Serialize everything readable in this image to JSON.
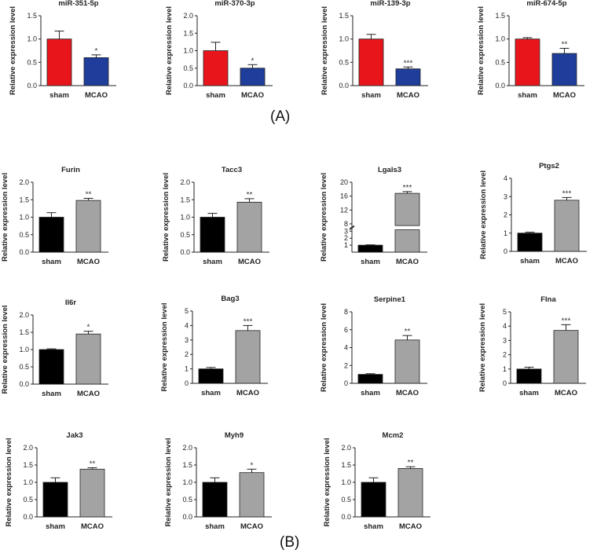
{
  "panel_labels": {
    "a": "(A)",
    "b": "(B)"
  },
  "common": {
    "ylabel": "Relative expression level",
    "categories": [
      "sham",
      "MCAO"
    ]
  },
  "chart_data": [
    {
      "type": "bar",
      "title": "miR-351-5p",
      "categories": [
        "sham",
        "MCAO"
      ],
      "values": [
        1.0,
        0.6
      ],
      "errors": [
        0.17,
        0.06
      ],
      "significance": [
        "",
        "*"
      ],
      "ylabel": "Relative expression level",
      "ylim": [
        0,
        1.5
      ],
      "yticks": [
        0,
        0.5,
        1.0,
        1.5
      ],
      "colors": [
        "#e8161b",
        "#1f3d9a"
      ]
    },
    {
      "type": "bar",
      "title": "miR-370-3p",
      "categories": [
        "sham",
        "MCAO"
      ],
      "values": [
        1.0,
        0.5
      ],
      "errors": [
        0.24,
        0.1
      ],
      "significance": [
        "",
        "*"
      ],
      "ylabel": "Relative expression level",
      "ylim": [
        0,
        2.0
      ],
      "yticks": [
        0,
        0.5,
        1.0,
        1.5,
        2.0
      ],
      "colors": [
        "#e8161b",
        "#1f3d9a"
      ]
    },
    {
      "type": "bar",
      "title": "miR-139-3p",
      "categories": [
        "sham",
        "MCAO"
      ],
      "values": [
        1.0,
        0.36
      ],
      "errors": [
        0.1,
        0.04
      ],
      "significance": [
        "",
        "***"
      ],
      "ylabel": "Relative expression level",
      "ylim": [
        0,
        1.5
      ],
      "yticks": [
        0,
        0.5,
        1.0,
        1.5
      ],
      "colors": [
        "#e8161b",
        "#1f3d9a"
      ]
    },
    {
      "type": "bar",
      "title": "miR-674-5p",
      "categories": [
        "sham",
        "MCAO"
      ],
      "values": [
        1.0,
        0.69
      ],
      "errors": [
        0.03,
        0.11
      ],
      "significance": [
        "",
        "**"
      ],
      "ylabel": "Relative expression level",
      "ylim": [
        0,
        1.5
      ],
      "yticks": [
        0,
        0.5,
        1.0,
        1.5
      ],
      "colors": [
        "#e8161b",
        "#1f3d9a"
      ]
    },
    {
      "type": "bar",
      "title": "Furin",
      "categories": [
        "sham",
        "MCAO"
      ],
      "values": [
        1.0,
        1.48
      ],
      "errors": [
        0.13,
        0.06
      ],
      "significance": [
        "",
        "**"
      ],
      "ylabel": "Relative expression level",
      "ylim": [
        0,
        2.0
      ],
      "yticks": [
        0,
        0.5,
        1.0,
        1.5,
        2.0
      ],
      "colors": [
        "#000000",
        "#a3a3a3"
      ]
    },
    {
      "type": "bar",
      "title": "Tacc3",
      "categories": [
        "sham",
        "MCAO"
      ],
      "values": [
        1.0,
        1.43
      ],
      "errors": [
        0.11,
        0.1
      ],
      "significance": [
        "",
        "**"
      ],
      "ylabel": "Relative expression level",
      "ylim": [
        0,
        2.0
      ],
      "yticks": [
        0,
        0.5,
        1.0,
        1.5,
        2.0
      ],
      "colors": [
        "#000000",
        "#a3a3a3"
      ]
    },
    {
      "type": "bar",
      "title": "Lgals3",
      "categories": [
        "sham",
        "MCAO"
      ],
      "values": [
        1.0,
        16.8
      ],
      "errors": [
        0.05,
        0.5
      ],
      "significance": [
        "",
        "***"
      ],
      "ylabel": "Relative expression level",
      "ylim": [
        0,
        20
      ],
      "yticks": [
        1,
        2,
        3,
        8,
        12,
        16,
        20
      ],
      "axis_break": [
        3.2,
        7.5
      ],
      "colors": [
        "#000000",
        "#a3a3a3"
      ]
    },
    {
      "type": "bar",
      "title": "Ptgs2",
      "categories": [
        "sham",
        "MCAO"
      ],
      "values": [
        1.0,
        2.8
      ],
      "errors": [
        0.05,
        0.15
      ],
      "significance": [
        "",
        "***"
      ],
      "ylabel": "Relative expression level",
      "ylim": [
        0,
        4
      ],
      "yticks": [
        0,
        1,
        2,
        3,
        4
      ],
      "colors": [
        "#000000",
        "#a3a3a3"
      ]
    },
    {
      "type": "bar",
      "title": "Il6r",
      "categories": [
        "sham",
        "MCAO"
      ],
      "values": [
        1.0,
        1.45
      ],
      "errors": [
        0.02,
        0.08
      ],
      "significance": [
        "",
        "*"
      ],
      "ylabel": "Relative expression level",
      "ylim": [
        0,
        2.0
      ],
      "yticks": [
        0,
        0.5,
        1.0,
        1.5,
        2.0
      ],
      "colors": [
        "#000000",
        "#a3a3a3"
      ]
    },
    {
      "type": "bar",
      "title": "Bag3",
      "categories": [
        "sham",
        "MCAO"
      ],
      "values": [
        1.0,
        3.65
      ],
      "errors": [
        0.1,
        0.35
      ],
      "significance": [
        "",
        "***"
      ],
      "ylabel": "Relative expression level",
      "ylim": [
        0,
        5
      ],
      "yticks": [
        0,
        1,
        2,
        3,
        4,
        5
      ],
      "colors": [
        "#000000",
        "#a3a3a3"
      ]
    },
    {
      "type": "bar",
      "title": "Serpine1",
      "categories": [
        "sham",
        "MCAO"
      ],
      "values": [
        1.0,
        4.85
      ],
      "errors": [
        0.08,
        0.5
      ],
      "significance": [
        "",
        "**"
      ],
      "ylabel": "Relative expression level",
      "ylim": [
        0,
        8
      ],
      "yticks": [
        0,
        2,
        4,
        6,
        8
      ],
      "colors": [
        "#000000",
        "#a3a3a3"
      ]
    },
    {
      "type": "bar",
      "title": "Flna",
      "categories": [
        "sham",
        "MCAO"
      ],
      "values": [
        1.0,
        3.7
      ],
      "errors": [
        0.13,
        0.4
      ],
      "significance": [
        "",
        "***"
      ],
      "ylabel": "Relative expression level",
      "ylim": [
        0,
        5
      ],
      "yticks": [
        0,
        1,
        2,
        3,
        4,
        5
      ],
      "colors": [
        "#000000",
        "#a3a3a3"
      ]
    },
    {
      "type": "bar",
      "title": "Jak3",
      "categories": [
        "sham",
        "MCAO"
      ],
      "values": [
        1.0,
        1.38
      ],
      "errors": [
        0.13,
        0.04
      ],
      "significance": [
        "",
        "**"
      ],
      "ylabel": "Relative expression level",
      "ylim": [
        0,
        2.0
      ],
      "yticks": [
        0,
        0.5,
        1.0,
        1.5,
        2.0
      ],
      "colors": [
        "#000000",
        "#a3a3a3"
      ]
    },
    {
      "type": "bar",
      "title": "Myh9",
      "categories": [
        "sham",
        "MCAO"
      ],
      "values": [
        1.0,
        1.28
      ],
      "errors": [
        0.13,
        0.1
      ],
      "significance": [
        "",
        "*"
      ],
      "ylabel": "Relative expression level",
      "ylim": [
        0,
        2.0
      ],
      "yticks": [
        0,
        0.5,
        1.0,
        1.5,
        2.0
      ],
      "colors": [
        "#000000",
        "#a3a3a3"
      ]
    },
    {
      "type": "bar",
      "title": "Mcm2",
      "categories": [
        "sham",
        "MCAO"
      ],
      "values": [
        1.0,
        1.4
      ],
      "errors": [
        0.13,
        0.05
      ],
      "significance": [
        "",
        "**"
      ],
      "ylabel": "Relative expression level",
      "ylim": [
        0,
        2.0
      ],
      "yticks": [
        0,
        0.5,
        1.0,
        1.5,
        2.0
      ],
      "colors": [
        "#000000",
        "#a3a3a3"
      ]
    }
  ]
}
